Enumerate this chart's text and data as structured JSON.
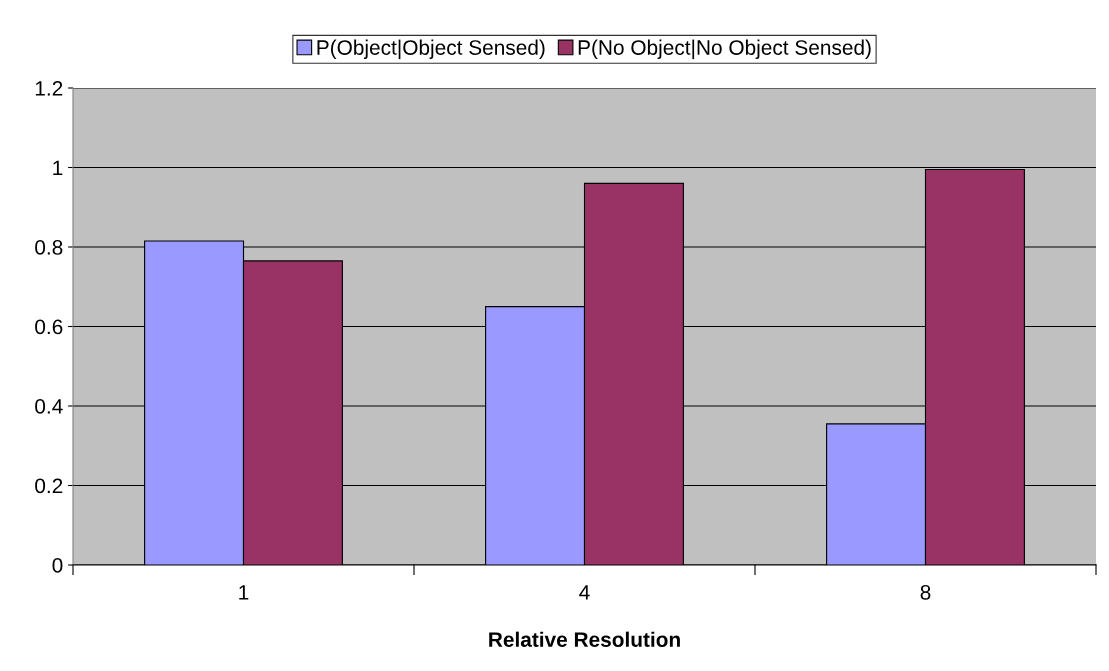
{
  "chart_data": {
    "type": "bar",
    "xlabel": "Relative Resolution",
    "categories": [
      "1",
      "4",
      "8"
    ],
    "series": [
      {
        "name": "P(Object|Object Sensed)",
        "color": "#9999ff",
        "values": [
          0.815,
          0.65,
          0.355
        ]
      },
      {
        "name": "P(No Object|No Object Sensed)",
        "color": "#993366",
        "values": [
          0.765,
          0.96,
          0.995
        ]
      }
    ],
    "ylim": [
      0,
      1.2
    ],
    "yticks": [
      0,
      0.2,
      0.4,
      0.6,
      0.8,
      1,
      1.2
    ],
    "grid": "y",
    "legend": "top"
  }
}
